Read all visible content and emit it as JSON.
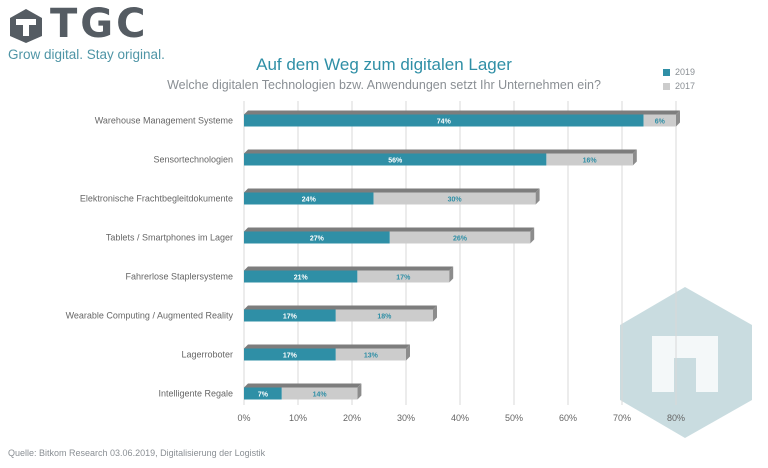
{
  "brand": {
    "name": "TGC",
    "tagline": "Grow digital. Stay original."
  },
  "chart_data": {
    "type": "bar",
    "orientation": "horizontal",
    "stacked": true,
    "title": "Auf dem Weg zum digitalen Lager",
    "subtitle": "Welche digitalen Technologien bzw. Anwendungen setzt Ihr Unternehmen ein?",
    "categories": [
      "Warehouse Management Systeme",
      "Sensortechnologien",
      "Elektronische Frachtbegleitdokumente",
      "Tablets / Smartphones im Lager",
      "Fahrerlose Staplersysteme",
      "Wearable Computing / Augmented Reality",
      "Lagerroboter",
      "Intelligente Regale"
    ],
    "series": [
      {
        "name": "2019",
        "color": "#2f8fa6",
        "values": [
          74,
          56,
          24,
          27,
          21,
          17,
          17,
          7
        ],
        "labels": [
          "74%",
          "56%",
          "24%",
          "27%",
          "21%",
          "17%",
          "17%",
          "7%"
        ]
      },
      {
        "name": "2017",
        "color": "#cccccc",
        "values": [
          6,
          16,
          30,
          26,
          17,
          18,
          13,
          14
        ],
        "labels": [
          "6%",
          "16%",
          "30%",
          "26%",
          "17%",
          "18%",
          "13%",
          "14%"
        ]
      }
    ],
    "xticks": [
      "0%",
      "10%",
      "20%",
      "30%",
      "40%",
      "50%",
      "60%",
      "70%",
      "80%"
    ],
    "xlim": [
      0,
      80
    ],
    "grid": true,
    "legend": "top-right"
  },
  "source": "Quelle: Bitkom Research 03.06.2019, Digitalisierung der Logistik"
}
